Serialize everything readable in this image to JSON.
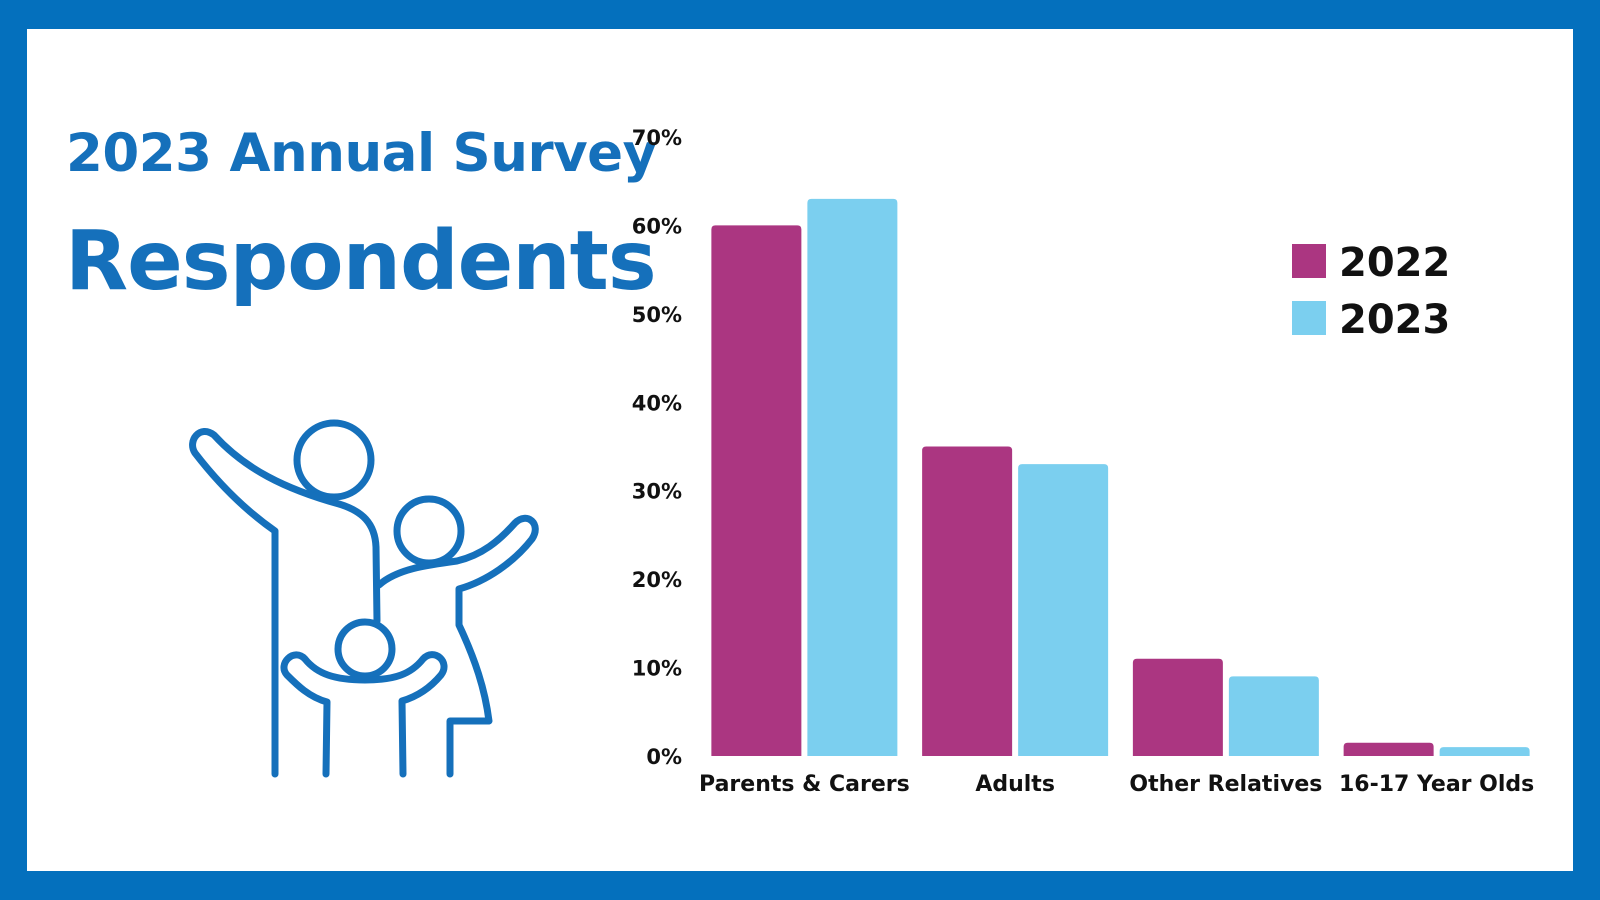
{
  "heading": {
    "line1": "2023 Annual Survey",
    "line2": "Respondents"
  },
  "illustration": {
    "icon": "family-icon",
    "color": "#1570bb"
  },
  "chart_data": {
    "type": "bar",
    "categories": [
      "Parents & Carers",
      "Adults",
      "Other Relatives",
      "16-17 Year Olds"
    ],
    "series": [
      {
        "name": "2022",
        "color": "#ab3681",
        "values": [
          60,
          35,
          11,
          1.5
        ]
      },
      {
        "name": "2023",
        "color": "#7bcfef",
        "values": [
          63,
          33,
          9,
          1
        ]
      }
    ],
    "ylim": [
      0,
      70
    ],
    "yticks": [
      0,
      10,
      20,
      30,
      40,
      50,
      60,
      70
    ],
    "ytick_labels": [
      "0%",
      "10%",
      "20%",
      "30%",
      "40%",
      "50%",
      "60%",
      "70%"
    ],
    "xlabel": "",
    "ylabel": "",
    "grid": false,
    "legend_position": "top-right"
  }
}
